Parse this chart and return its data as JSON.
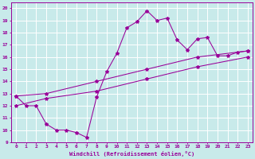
{
  "title": "",
  "xlabel": "Windchill (Refroidissement éolien,°C)",
  "bg_color": "#c8eaea",
  "line_color": "#990099",
  "grid_color": "#ffffff",
  "xlim": [
    -0.5,
    23.5
  ],
  "ylim": [
    9,
    20.5
  ],
  "xticks": [
    0,
    1,
    2,
    3,
    4,
    5,
    6,
    7,
    8,
    9,
    10,
    11,
    12,
    13,
    14,
    15,
    16,
    17,
    18,
    19,
    20,
    21,
    22,
    23
  ],
  "yticks": [
    9,
    10,
    11,
    12,
    13,
    14,
    15,
    16,
    17,
    18,
    19,
    20
  ],
  "line1_x": [
    0,
    1,
    2,
    3,
    4,
    5,
    6,
    7,
    8,
    9,
    10,
    11,
    12,
    13,
    14,
    15,
    16,
    17,
    18,
    19,
    20,
    21,
    22,
    23
  ],
  "line1_y": [
    12.8,
    12.0,
    12.0,
    10.5,
    10.0,
    10.0,
    9.8,
    9.4,
    12.7,
    14.8,
    16.3,
    18.4,
    18.9,
    19.8,
    19.0,
    19.2,
    17.4,
    16.6,
    17.5,
    17.6,
    16.1,
    16.1,
    16.4,
    16.5
  ],
  "line2_x": [
    0,
    3,
    8,
    13,
    18,
    23
  ],
  "line2_y": [
    12.8,
    13.0,
    14.0,
    15.0,
    16.0,
    16.5
  ],
  "line3_x": [
    0,
    3,
    8,
    13,
    18,
    23
  ],
  "line3_y": [
    12.0,
    12.6,
    13.2,
    14.2,
    15.2,
    16.0
  ]
}
